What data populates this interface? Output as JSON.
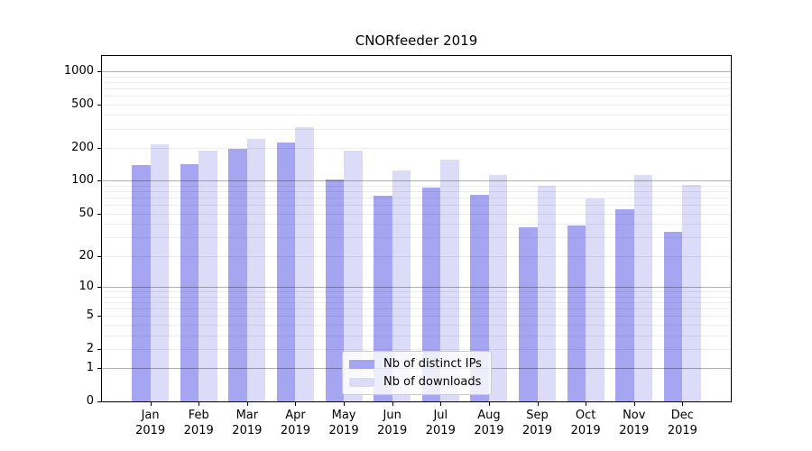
{
  "chart_data": {
    "type": "bar",
    "title": "CNORfeeder 2019",
    "categories": [
      "Jan 2019",
      "Feb 2019",
      "Mar 2019",
      "Apr 2019",
      "May 2019",
      "Jun 2019",
      "Jul 2019",
      "Aug 2019",
      "Sep 2019",
      "Oct 2019",
      "Nov 2019",
      "Dec 2019"
    ],
    "series": [
      {
        "name": "Nb of distinct IPs",
        "color": "#a5a5f1",
        "values": [
          140,
          142,
          196,
          225,
          102,
          73,
          86,
          75,
          37,
          39,
          55,
          34
        ]
      },
      {
        "name": "Nb of downloads",
        "color": "#dcdcf9",
        "values": [
          215,
          190,
          242,
          310,
          189,
          125,
          155,
          113,
          90,
          69,
          114,
          91
        ]
      }
    ],
    "xlabel": "",
    "ylabel": "",
    "yscale": "log1p",
    "yticks": [
      0,
      1,
      2,
      5,
      10,
      20,
      50,
      100,
      200,
      500,
      1000
    ],
    "ylim": [
      0,
      1380
    ],
    "grid": {
      "on": true,
      "major_at": [
        1,
        10,
        100,
        1000
      ],
      "minor_subs": [
        2,
        3,
        4,
        5,
        6,
        7,
        8,
        9
      ]
    },
    "legend_position": "inside-bottom-center"
  }
}
